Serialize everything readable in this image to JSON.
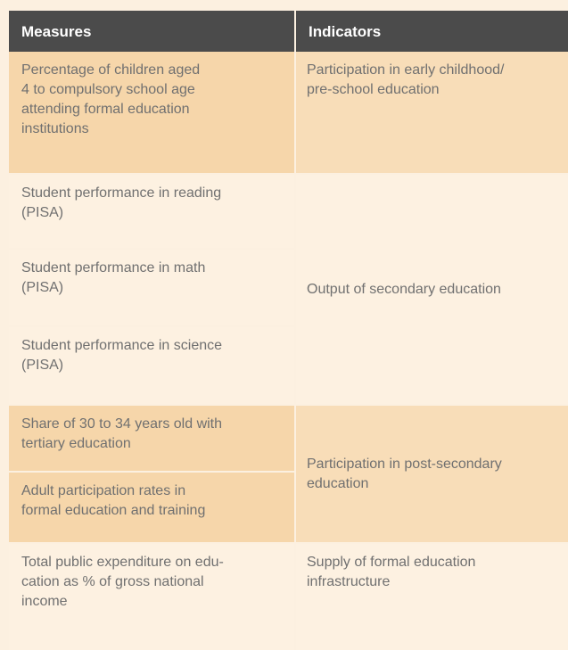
{
  "table": {
    "header": [
      "Measures",
      "Indicators"
    ],
    "groups": [
      {
        "measures": [
          [
            "Percentage of children aged",
            "4 to compulsory school age",
            "attending formal education",
            "institutions"
          ]
        ],
        "indicator": [
          "Participation in early childhood/",
          "pre-school education"
        ]
      },
      {
        "measures": [
          [
            "Student performance in reading",
            "(PISA)"
          ],
          [
            "Student performance in math",
            "(PISA)"
          ],
          [
            "Student performance in science",
            "(PISA)"
          ]
        ],
        "indicator": [
          "Output of secondary education"
        ]
      },
      {
        "measures": [
          [
            "Share of 30 to 34 years old with",
            "tertiary education"
          ],
          [
            "Adult participation rates in",
            "formal education and training"
          ]
        ],
        "indicator": [
          "Participation in post-secondary",
          "education"
        ]
      },
      {
        "measures": [
          [
            "Total public expenditure on edu-",
            "cation as % of gross national",
            "income"
          ]
        ],
        "indicator": [
          "Supply of formal education",
          "infrastructure"
        ]
      }
    ]
  }
}
